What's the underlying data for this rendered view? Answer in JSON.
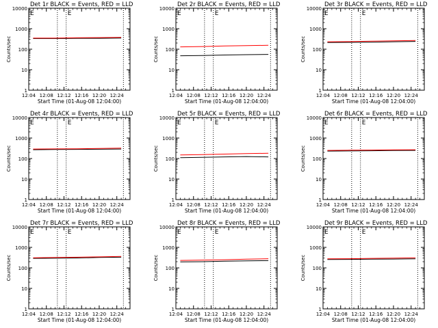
{
  "xlabel": "Start Time (01-Aug-08 12:04:00)",
  "ylabel": "Counts/sec",
  "x_tick_labels": [
    "12:04",
    "12:08",
    "12:12",
    "12:16",
    "12:20",
    "12:24"
  ],
  "y_tick_labels": [
    "1",
    "10",
    "100",
    "1000",
    "10000"
  ],
  "marker_labels": [
    "E",
    "E"
  ],
  "colors": {
    "events": "#000000",
    "lld": "#ff0000",
    "axes": "#000000"
  },
  "chart_data": [
    {
      "type": "line",
      "title": "Det 1r BLACK = Events, RED = LLD",
      "xlim": [
        "12:04",
        "12:27"
      ],
      "ylim": [
        1,
        10000
      ],
      "ylog": true,
      "x": [
        "12:05",
        "12:10",
        "12:15",
        "12:20",
        "12:25"
      ],
      "series": [
        {
          "name": "Events",
          "color": "#000000",
          "values": [
            330,
            330,
            340,
            340,
            350
          ]
        },
        {
          "name": "LLD",
          "color": "#ff0000",
          "values": [
            350,
            350,
            360,
            370,
            380
          ]
        }
      ]
    },
    {
      "type": "line",
      "title": "Det 2r BLACK = Events, RED = LLD",
      "xlim": [
        "12:04",
        "12:27"
      ],
      "ylim": [
        1,
        10000
      ],
      "ylog": true,
      "x": [
        "12:05",
        "12:10",
        "12:15",
        "12:20",
        "12:25"
      ],
      "series": [
        {
          "name": "Events",
          "color": "#000000",
          "values": [
            48,
            49,
            52,
            54,
            56
          ]
        },
        {
          "name": "LLD",
          "color": "#ff0000",
          "values": [
            130,
            135,
            145,
            150,
            155
          ]
        }
      ]
    },
    {
      "type": "line",
      "title": "Det 3r BLACK = Events, RED = LLD",
      "xlim": [
        "12:04",
        "12:27"
      ],
      "ylim": [
        1,
        10000
      ],
      "ylog": true,
      "x": [
        "12:05",
        "12:10",
        "12:15",
        "12:20",
        "12:25"
      ],
      "series": [
        {
          "name": "Events",
          "color": "#000000",
          "values": [
            210,
            215,
            220,
            230,
            240
          ]
        },
        {
          "name": "LLD",
          "color": "#ff0000",
          "values": [
            230,
            235,
            245,
            255,
            265
          ]
        }
      ]
    },
    {
      "type": "line",
      "title": "Det 4r BLACK = Events, RED = LLD",
      "xlim": [
        "12:04",
        "12:27"
      ],
      "ylim": [
        1,
        10000
      ],
      "ylog": true,
      "x": [
        "12:05",
        "12:10",
        "12:15",
        "12:20",
        "12:25"
      ],
      "series": [
        {
          "name": "Events",
          "color": "#000000",
          "values": [
            270,
            275,
            280,
            285,
            290
          ]
        },
        {
          "name": "LLD",
          "color": "#ff0000",
          "values": [
            290,
            295,
            300,
            310,
            320
          ]
        }
      ]
    },
    {
      "type": "line",
      "title": "Det 5r BLACK = Events, RED = LLD",
      "xlim": [
        "12:04",
        "12:27"
      ],
      "ylim": [
        1,
        10000
      ],
      "ylog": true,
      "x": [
        "12:05",
        "12:10",
        "12:15",
        "12:20",
        "12:25"
      ],
      "series": [
        {
          "name": "Events",
          "color": "#000000",
          "values": [
            110,
            115,
            120,
            125,
            120
          ]
        },
        {
          "name": "LLD",
          "color": "#ff0000",
          "values": [
            150,
            155,
            165,
            175,
            180
          ]
        }
      ]
    },
    {
      "type": "line",
      "title": "Det 6r BLACK = Events, RED = LLD",
      "xlim": [
        "12:04",
        "12:27"
      ],
      "ylim": [
        1,
        10000
      ],
      "ylog": true,
      "x": [
        "12:05",
        "12:10",
        "12:15",
        "12:20",
        "12:25"
      ],
      "series": [
        {
          "name": "Events",
          "color": "#000000",
          "values": [
            230,
            235,
            240,
            245,
            250
          ]
        },
        {
          "name": "LLD",
          "color": "#ff0000",
          "values": [
            250,
            255,
            260,
            265,
            270
          ]
        }
      ]
    },
    {
      "type": "line",
      "title": "Det 7r BLACK = Events, RED = LLD",
      "xlim": [
        "12:04",
        "12:27"
      ],
      "ylim": [
        1,
        10000
      ],
      "ylog": true,
      "x": [
        "12:05",
        "12:10",
        "12:15",
        "12:20",
        "12:25"
      ],
      "series": [
        {
          "name": "Events",
          "color": "#000000",
          "values": [
            290,
            295,
            305,
            320,
            330
          ]
        },
        {
          "name": "LLD",
          "color": "#ff0000",
          "values": [
            310,
            320,
            330,
            345,
            360
          ]
        }
      ]
    },
    {
      "type": "line",
      "title": "Det 8r BLACK = Events, RED = LLD",
      "xlim": [
        "12:04",
        "12:27"
      ],
      "ylim": [
        1,
        10000
      ],
      "ylog": true,
      "x": [
        "12:05",
        "12:10",
        "12:15",
        "12:20",
        "12:25"
      ],
      "series": [
        {
          "name": "Events",
          "color": "#000000",
          "values": [
            195,
            200,
            210,
            220,
            225
          ]
        },
        {
          "name": "LLD",
          "color": "#ff0000",
          "values": [
            230,
            240,
            250,
            265,
            280
          ]
        }
      ]
    },
    {
      "type": "line",
      "title": "Det 9r BLACK = Events, RED = LLD",
      "xlim": [
        "12:04",
        "12:27"
      ],
      "ylim": [
        1,
        10000
      ],
      "ylog": true,
      "x": [
        "12:05",
        "12:10",
        "12:15",
        "12:20",
        "12:25"
      ],
      "series": [
        {
          "name": "Events",
          "color": "#000000",
          "values": [
            255,
            260,
            265,
            270,
            275
          ]
        },
        {
          "name": "LLD",
          "color": "#ff0000",
          "values": [
            275,
            280,
            290,
            300,
            310
          ]
        }
      ]
    }
  ]
}
